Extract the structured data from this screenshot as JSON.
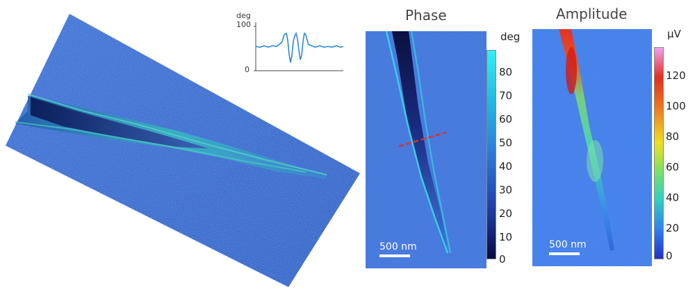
{
  "inset_plot": {
    "ylabel": "deg",
    "ytick_top": "100",
    "ytick_bottom": "0",
    "line_color": "#2f86d8"
  },
  "phase_panel": {
    "title": "Phase",
    "unit": "deg",
    "colorbar_ticks": [
      "80",
      "70",
      "60",
      "50",
      "40",
      "30",
      "20",
      "10",
      "0"
    ],
    "scalebar": "500 nm",
    "background_color": "#3a6fd8"
  },
  "amplitude_panel": {
    "title": "Amplitude",
    "unit": "µV",
    "colorbar_ticks": [
      "120",
      "100",
      "80",
      "60",
      "40",
      "20",
      "0"
    ],
    "scalebar": "500 nm",
    "background_color": "#3a78e8"
  },
  "surface_3d": {
    "surface_color": "#3d6fd1",
    "ridge_color": "#3fc0c0"
  }
}
